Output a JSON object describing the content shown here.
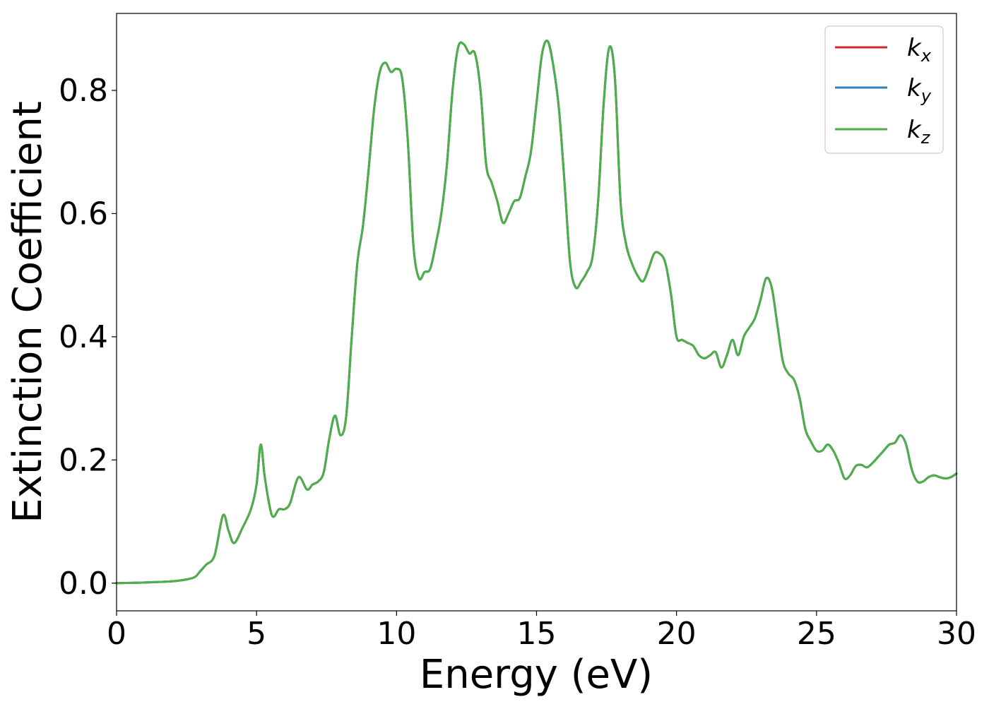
{
  "chart_data": {
    "type": "line",
    "title": "",
    "xlabel": "Energy (eV)",
    "ylabel": "Extinction Coefficient",
    "xlim": [
      0,
      30
    ],
    "ylim": [
      -0.045,
      0.925
    ],
    "xticks": [
      0,
      5,
      10,
      15,
      20,
      25,
      30
    ],
    "yticks": [
      0.0,
      0.2,
      0.4,
      0.6,
      0.8
    ],
    "xtick_labels": [
      "0",
      "5",
      "10",
      "15",
      "20",
      "25",
      "30"
    ],
    "ytick_labels": [
      "0.0",
      "0.2",
      "0.4",
      "0.6",
      "0.8"
    ],
    "grid": false,
    "legend_position": "top-right",
    "x": [
      0,
      1,
      2,
      2.5,
      2.8,
      3.0,
      3.2,
      3.5,
      3.8,
      4.0,
      4.2,
      4.5,
      4.8,
      5.0,
      5.15,
      5.3,
      5.55,
      5.8,
      6.0,
      6.2,
      6.5,
      6.8,
      7.0,
      7.2,
      7.4,
      7.6,
      7.8,
      8.0,
      8.2,
      8.4,
      8.6,
      8.8,
      9.0,
      9.2,
      9.4,
      9.6,
      9.8,
      10.0,
      10.2,
      10.4,
      10.6,
      10.8,
      11.0,
      11.2,
      11.4,
      11.6,
      11.8,
      12.0,
      12.2,
      12.4,
      12.6,
      12.8,
      13.0,
      13.2,
      13.4,
      13.6,
      13.8,
      14.0,
      14.2,
      14.4,
      14.6,
      14.8,
      15.0,
      15.2,
      15.4,
      15.6,
      15.8,
      16.0,
      16.2,
      16.4,
      16.6,
      16.8,
      17.0,
      17.2,
      17.4,
      17.6,
      17.8,
      18.0,
      18.2,
      18.4,
      18.6,
      18.8,
      19.0,
      19.2,
      19.4,
      19.6,
      19.8,
      20.0,
      20.2,
      20.4,
      20.6,
      20.8,
      21.0,
      21.2,
      21.4,
      21.6,
      21.8,
      22.0,
      22.2,
      22.4,
      22.6,
      22.8,
      23.0,
      23.2,
      23.4,
      23.6,
      23.8,
      24.0,
      24.2,
      24.4,
      24.6,
      24.8,
      25.0,
      25.2,
      25.4,
      25.6,
      25.8,
      26.0,
      26.2,
      26.4,
      26.6,
      26.8,
      27.0,
      27.2,
      27.4,
      27.6,
      27.8,
      28.0,
      28.2,
      28.4,
      28.6,
      28.8,
      29.0,
      29.2,
      29.4,
      29.6,
      29.8,
      30.0
    ],
    "series": [
      {
        "name": "k_x",
        "color": "#d62728",
        "values": [
          0.0,
          0.001,
          0.003,
          0.006,
          0.01,
          0.02,
          0.03,
          0.045,
          0.11,
          0.085,
          0.065,
          0.09,
          0.12,
          0.16,
          0.225,
          0.17,
          0.11,
          0.12,
          0.12,
          0.13,
          0.172,
          0.152,
          0.16,
          0.165,
          0.18,
          0.235,
          0.272,
          0.24,
          0.27,
          0.4,
          0.52,
          0.58,
          0.67,
          0.77,
          0.83,
          0.845,
          0.83,
          0.835,
          0.82,
          0.72,
          0.55,
          0.495,
          0.505,
          0.51,
          0.55,
          0.6,
          0.68,
          0.8,
          0.87,
          0.875,
          0.86,
          0.86,
          0.8,
          0.68,
          0.65,
          0.62,
          0.585,
          0.6,
          0.62,
          0.625,
          0.66,
          0.7,
          0.78,
          0.86,
          0.88,
          0.84,
          0.77,
          0.65,
          0.52,
          0.48,
          0.49,
          0.505,
          0.53,
          0.62,
          0.78,
          0.87,
          0.82,
          0.62,
          0.55,
          0.52,
          0.5,
          0.49,
          0.51,
          0.535,
          0.535,
          0.52,
          0.47,
          0.4,
          0.395,
          0.39,
          0.385,
          0.37,
          0.365,
          0.37,
          0.375,
          0.35,
          0.37,
          0.395,
          0.37,
          0.4,
          0.415,
          0.43,
          0.46,
          0.495,
          0.48,
          0.42,
          0.36,
          0.34,
          0.33,
          0.3,
          0.25,
          0.23,
          0.215,
          0.215,
          0.225,
          0.215,
          0.195,
          0.17,
          0.175,
          0.19,
          0.192,
          0.188,
          0.195,
          0.205,
          0.215,
          0.225,
          0.228,
          0.24,
          0.225,
          0.185,
          0.165,
          0.165,
          0.172,
          0.175,
          0.172,
          0.17,
          0.172,
          0.178
        ]
      },
      {
        "name": "k_y",
        "color": "#377eb8",
        "values": [
          0.0,
          0.001,
          0.003,
          0.006,
          0.01,
          0.02,
          0.03,
          0.045,
          0.11,
          0.085,
          0.065,
          0.09,
          0.12,
          0.16,
          0.225,
          0.17,
          0.11,
          0.12,
          0.12,
          0.13,
          0.172,
          0.152,
          0.16,
          0.165,
          0.18,
          0.235,
          0.272,
          0.24,
          0.27,
          0.4,
          0.52,
          0.58,
          0.67,
          0.77,
          0.83,
          0.845,
          0.83,
          0.835,
          0.82,
          0.72,
          0.55,
          0.495,
          0.505,
          0.51,
          0.55,
          0.6,
          0.68,
          0.8,
          0.87,
          0.875,
          0.86,
          0.86,
          0.8,
          0.68,
          0.65,
          0.62,
          0.585,
          0.6,
          0.62,
          0.625,
          0.66,
          0.7,
          0.78,
          0.86,
          0.88,
          0.84,
          0.77,
          0.65,
          0.52,
          0.48,
          0.49,
          0.505,
          0.53,
          0.62,
          0.78,
          0.87,
          0.82,
          0.62,
          0.55,
          0.52,
          0.5,
          0.49,
          0.51,
          0.535,
          0.535,
          0.52,
          0.47,
          0.4,
          0.395,
          0.39,
          0.385,
          0.37,
          0.365,
          0.37,
          0.375,
          0.35,
          0.37,
          0.395,
          0.37,
          0.4,
          0.415,
          0.43,
          0.46,
          0.495,
          0.48,
          0.42,
          0.36,
          0.34,
          0.33,
          0.3,
          0.25,
          0.23,
          0.215,
          0.215,
          0.225,
          0.215,
          0.195,
          0.17,
          0.175,
          0.19,
          0.192,
          0.188,
          0.195,
          0.205,
          0.215,
          0.225,
          0.228,
          0.24,
          0.225,
          0.185,
          0.165,
          0.165,
          0.172,
          0.175,
          0.172,
          0.17,
          0.172,
          0.178
        ]
      },
      {
        "name": "k_z",
        "color": "#4daf4a",
        "values": [
          0.0,
          0.001,
          0.003,
          0.006,
          0.01,
          0.02,
          0.03,
          0.045,
          0.11,
          0.085,
          0.065,
          0.09,
          0.12,
          0.16,
          0.225,
          0.17,
          0.11,
          0.12,
          0.12,
          0.13,
          0.172,
          0.152,
          0.16,
          0.165,
          0.18,
          0.235,
          0.272,
          0.24,
          0.27,
          0.4,
          0.52,
          0.58,
          0.67,
          0.77,
          0.83,
          0.845,
          0.83,
          0.835,
          0.82,
          0.72,
          0.55,
          0.495,
          0.505,
          0.51,
          0.55,
          0.6,
          0.68,
          0.8,
          0.87,
          0.875,
          0.86,
          0.86,
          0.8,
          0.68,
          0.65,
          0.62,
          0.585,
          0.6,
          0.62,
          0.625,
          0.66,
          0.7,
          0.78,
          0.86,
          0.88,
          0.84,
          0.77,
          0.65,
          0.52,
          0.48,
          0.49,
          0.505,
          0.53,
          0.62,
          0.78,
          0.87,
          0.82,
          0.62,
          0.55,
          0.52,
          0.5,
          0.49,
          0.51,
          0.535,
          0.535,
          0.52,
          0.47,
          0.4,
          0.395,
          0.39,
          0.385,
          0.37,
          0.365,
          0.37,
          0.375,
          0.35,
          0.37,
          0.395,
          0.37,
          0.4,
          0.415,
          0.43,
          0.46,
          0.495,
          0.48,
          0.42,
          0.36,
          0.34,
          0.33,
          0.3,
          0.25,
          0.23,
          0.215,
          0.215,
          0.225,
          0.215,
          0.195,
          0.17,
          0.175,
          0.19,
          0.192,
          0.188,
          0.195,
          0.205,
          0.215,
          0.225,
          0.228,
          0.24,
          0.225,
          0.185,
          0.165,
          0.165,
          0.172,
          0.175,
          0.172,
          0.17,
          0.172,
          0.178
        ]
      }
    ],
    "legend": [
      {
        "base": "k",
        "sub": "x",
        "color": "#d62728"
      },
      {
        "base": "k",
        "sub": "y",
        "color": "#377eb8"
      },
      {
        "base": "k",
        "sub": "z",
        "color": "#4daf4a"
      }
    ]
  }
}
